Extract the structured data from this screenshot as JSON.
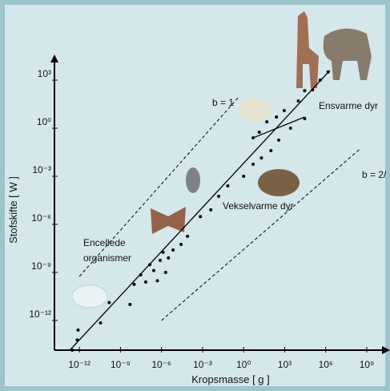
{
  "chart_data": {
    "type": "scatter",
    "xlabel": "Kropsmasse [ g ]",
    "ylabel": "Stofskifte [ W ]",
    "xscale": "log",
    "yscale": "log",
    "xlim": [
      1.5e-14,
      50000000000.0
    ],
    "ylim": [
      1.4e-14,
      40000.0
    ],
    "xticks": [
      {
        "value": 1e-12,
        "label": "10⁻¹²"
      },
      {
        "value": 1e-09,
        "label": "10⁻⁹"
      },
      {
        "value": 1e-06,
        "label": "10⁻⁶"
      },
      {
        "value": 0.001,
        "label": "10⁻³"
      },
      {
        "value": 1,
        "label": "10⁰"
      },
      {
        "value": 1000.0,
        "label": "10³"
      },
      {
        "value": 1000000.0,
        "label": "10⁶"
      },
      {
        "value": 1000000000.0,
        "label": "10⁹"
      }
    ],
    "yticks": [
      {
        "value": 1e-12,
        "label": "10⁻¹²"
      },
      {
        "value": 1e-09,
        "label": "10⁻⁹"
      },
      {
        "value": 1e-06,
        "label": "10⁻⁶"
      },
      {
        "value": 0.001,
        "label": "10⁻³"
      },
      {
        "value": 1,
        "label": "10⁰"
      },
      {
        "value": 1000.0,
        "label": "10³"
      }
    ],
    "series": [
      {
        "color": "#000000",
        "x": [
          3e-13,
          7e-13,
          8e-13,
          3.5e-11,
          1.5e-10,
          5e-09,
          1e-08,
          3e-08,
          7e-08,
          1.4e-07,
          2.7e-07,
          5e-07,
          8e-07,
          1.3e-06,
          2e-06,
          3.2e-06,
          7e-06,
          2.7e-05,
          8e-05,
          0.0007,
          0.004,
          0.015,
          0.07,
          1,
          5,
          20,
          100,
          370,
          2700,
          29000,
          5,
          14,
          50,
          250,
          930,
          10000.0,
          29000,
          110000.0,
          400000.0,
          1500000.0
        ],
        "y": [
          1.4e-14,
          6e-14,
          2.5e-13,
          7e-13,
          1.3e-11,
          1e-11,
          1.8e-10,
          7e-10,
          2.5e-10,
          3e-09,
          1.3e-09,
          3e-10,
          5.6e-09,
          1.8e-08,
          1e-09,
          8e-09,
          2.5e-08,
          5.6e-08,
          1.8e-07,
          3e-06,
          8e-06,
          5.6e-05,
          0.00025,
          0.001,
          0.0056,
          0.014,
          0.04,
          0.18,
          1,
          4,
          0.25,
          0.56,
          2.5,
          5,
          12.6,
          50,
          220,
          250,
          1000,
          3200
        ]
      }
    ],
    "lines": [
      {
        "style": "solid",
        "x": [
          2e-13,
          2000000.0
        ],
        "y": [
          1.4e-14,
          4000
        ]
      },
      {
        "style": "solid",
        "x": [
          5,
          29000
        ],
        "y": [
          0.25,
          5
        ]
      },
      {
        "style": "dashed",
        "x": [
          1e-12,
          0.5
        ],
        "y": [
          5.6e-10,
          100
        ]
      },
      {
        "style": "dashed",
        "x": [
          1e-06,
          370000000.0
        ],
        "y": [
          1e-12,
          0.056
        ]
      }
    ],
    "annotations": [
      "b = 1",
      "b = 2/",
      "Ensvarme dyr",
      "Vekselvarme dyr",
      "Encellede",
      "organismer"
    ]
  }
}
